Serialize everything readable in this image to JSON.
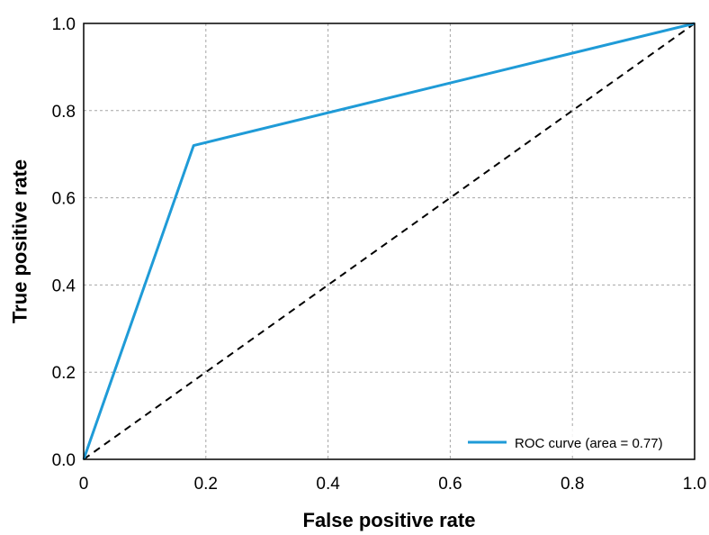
{
  "chart_data": {
    "type": "line",
    "xlabel": "False positive rate",
    "ylabel": "True positive rate",
    "xlim": [
      0,
      1
    ],
    "ylim": [
      0,
      1
    ],
    "x_ticks": [
      0,
      0.2,
      0.4,
      0.6,
      0.8,
      1.0
    ],
    "x_tick_labels": [
      "0",
      "0.2",
      "0.4",
      "0.6",
      "0.8",
      "1.0"
    ],
    "y_ticks": [
      0,
      0.2,
      0.4,
      0.6,
      0.8,
      1.0
    ],
    "y_tick_labels": [
      "0.0",
      "0.2",
      "0.4",
      "0.6",
      "0.8",
      "1.0"
    ],
    "grid": true,
    "legend_position": "bottom-right",
    "series": [
      {
        "name": "ROC curve (area = 0.77)",
        "color": "#1f9bd7",
        "style": "solid",
        "x": [
          0,
          0.18,
          1.0
        ],
        "y": [
          0,
          0.72,
          1.0
        ]
      },
      {
        "color": "#000000",
        "style": "dashed",
        "x": [
          0,
          1
        ],
        "y": [
          0,
          1
        ]
      }
    ]
  }
}
